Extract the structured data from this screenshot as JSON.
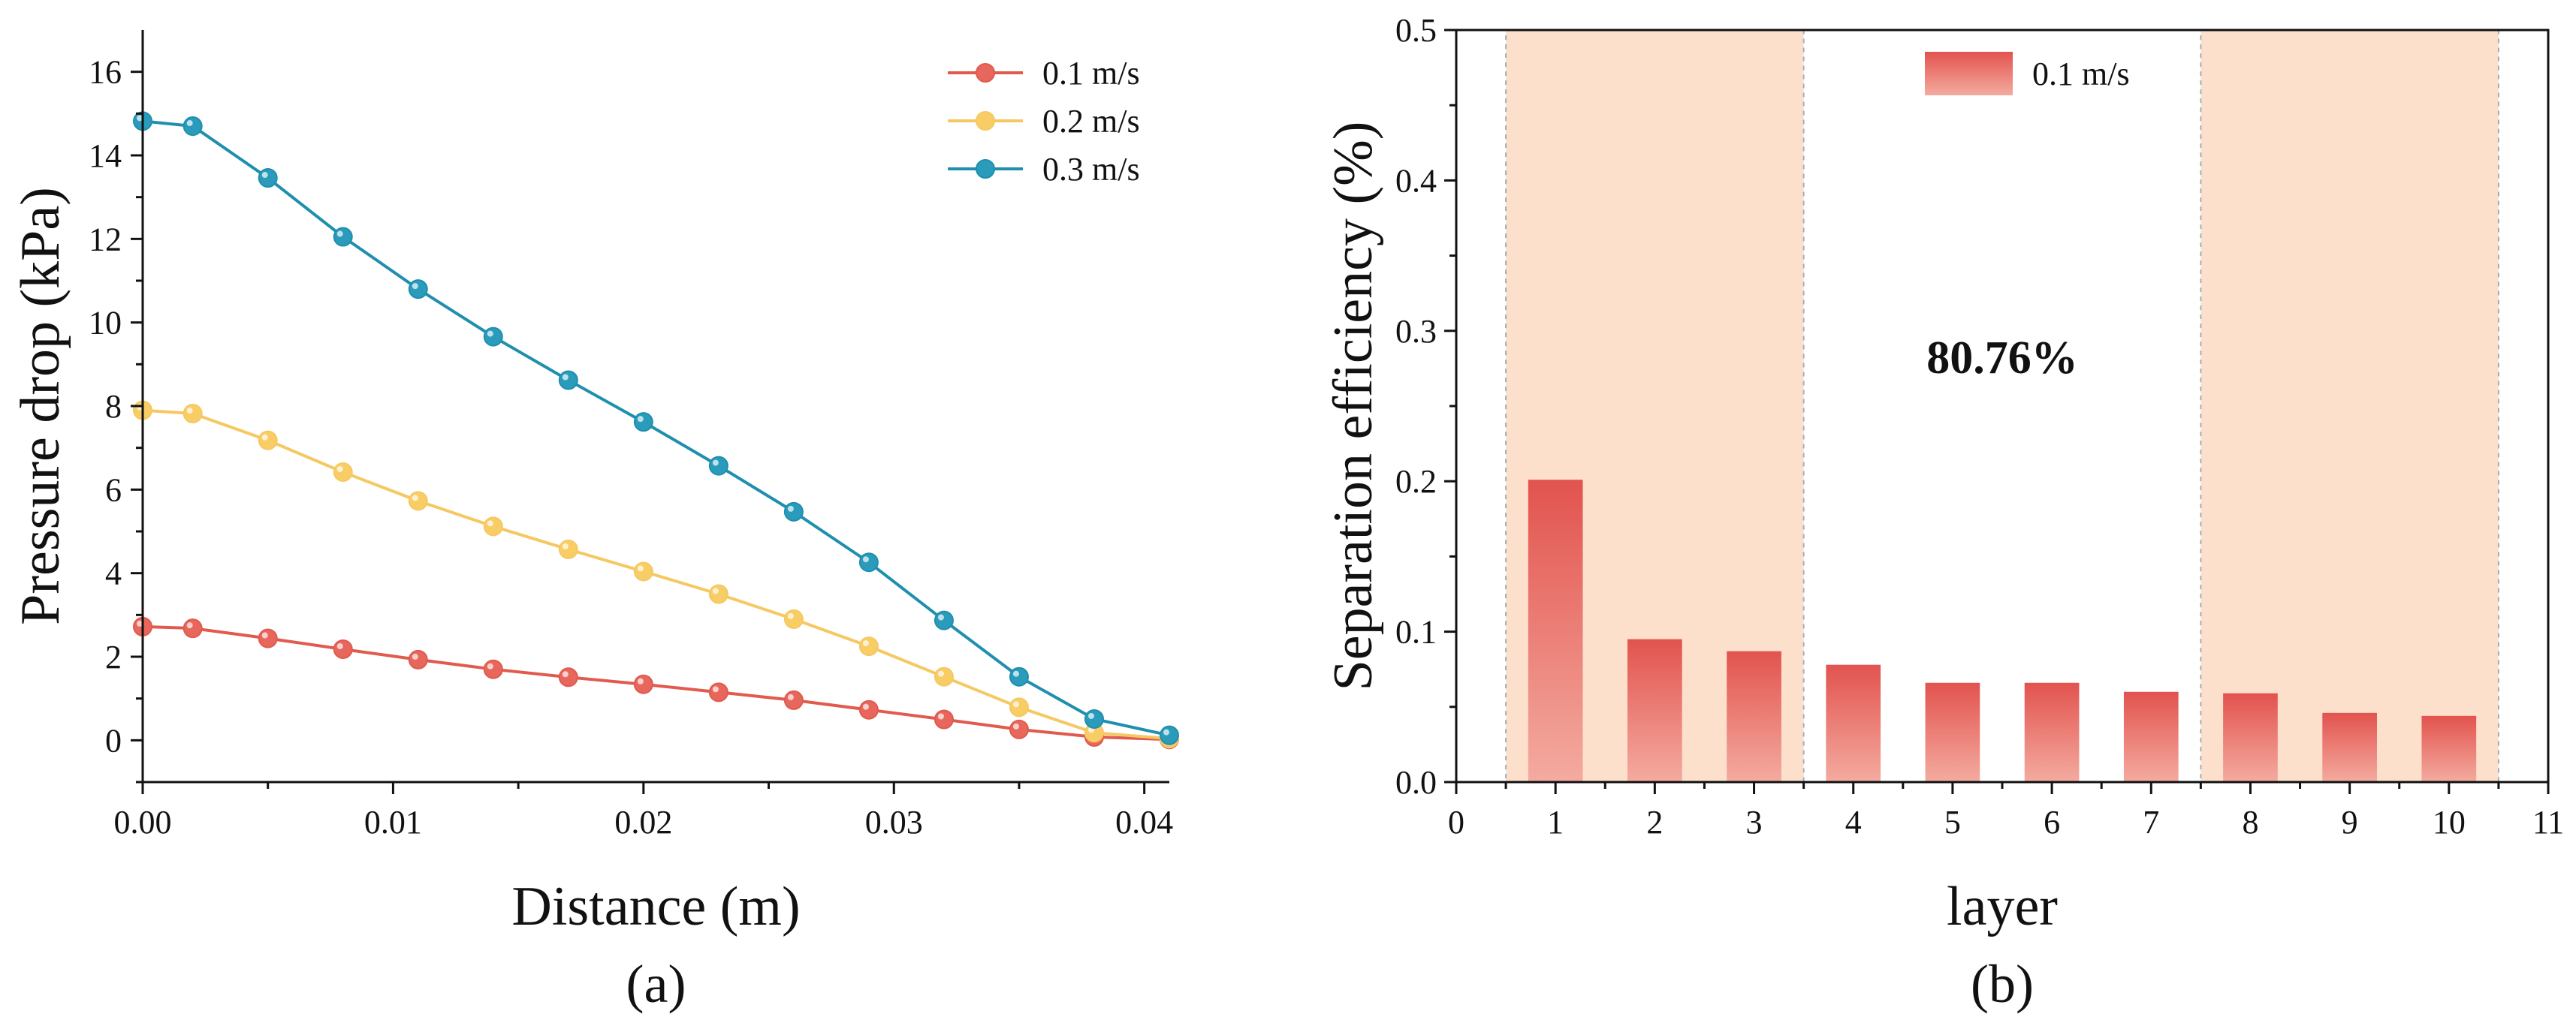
{
  "chart_data": [
    {
      "type": "line",
      "panel_label": "(a)",
      "xlabel": "Distance (m)",
      "ylabel": "Pressure drop (kPa)",
      "xlim": [
        0,
        0.041
      ],
      "ylim": [
        -1,
        17
      ],
      "xticks": [
        0.0,
        0.01,
        0.02,
        0.03,
        0.04
      ],
      "xtick_labels": [
        "0.00",
        "0.01",
        "0.02",
        "0.03",
        "0.04"
      ],
      "yticks": [
        0,
        2,
        4,
        6,
        8,
        10,
        12,
        14,
        16
      ],
      "ytick_labels": [
        "0",
        "2",
        "4",
        "6",
        "8",
        "10",
        "12",
        "14",
        "16"
      ],
      "grid": false,
      "legend_position": "top-right",
      "x": [
        0,
        0.002,
        0.005,
        0.008,
        0.011,
        0.014,
        0.017,
        0.02,
        0.023,
        0.026,
        0.029,
        0.032,
        0.035,
        0.038,
        0.041
      ],
      "series": [
        {
          "name": "0.1 m/s",
          "color": "#e05a4e",
          "marker_color": "#e8675c",
          "values": [
            2.72,
            2.68,
            2.44,
            2.18,
            1.93,
            1.7,
            1.51,
            1.34,
            1.15,
            0.96,
            0.73,
            0.5,
            0.26,
            0.08,
            0.02
          ]
        },
        {
          "name": "0.2 m/s",
          "color": "#f6c862",
          "marker_color": "#f8cd66",
          "values": [
            7.9,
            7.82,
            7.18,
            6.42,
            5.73,
            5.12,
            4.57,
            4.04,
            3.5,
            2.9,
            2.25,
            1.52,
            0.79,
            0.18,
            0.04
          ]
        },
        {
          "name": "0.3 m/s",
          "color": "#1f8fae",
          "marker_color": "#2a9bbb",
          "values": [
            14.82,
            14.7,
            13.46,
            12.05,
            10.8,
            9.66,
            8.62,
            7.62,
            6.57,
            5.47,
            4.26,
            2.87,
            1.52,
            0.51,
            0.12
          ]
        }
      ]
    },
    {
      "type": "bar",
      "panel_label": "(b)",
      "xlabel": "layer",
      "ylabel": "Separation efficiency (%)",
      "xlim": [
        0,
        11
      ],
      "ylim": [
        0,
        0.5
      ],
      "xticks": [
        0,
        1,
        2,
        3,
        4,
        5,
        6,
        7,
        8,
        9,
        10,
        11
      ],
      "xtick_labels": [
        "0",
        "1",
        "2",
        "3",
        "4",
        "5",
        "6",
        "7",
        "8",
        "9",
        "10",
        "11"
      ],
      "yticks": [
        0.0,
        0.1,
        0.2,
        0.3,
        0.4,
        0.5
      ],
      "ytick_labels": [
        "0.0",
        "0.1",
        "0.2",
        "0.3",
        "0.4",
        "0.5"
      ],
      "grid": false,
      "legend_position": "top-center",
      "categories": [
        1,
        2,
        3,
        4,
        5,
        6,
        7,
        8,
        9,
        10
      ],
      "series": [
        {
          "name": "0.1 m/s",
          "color_top": "#e2534e",
          "color_bottom": "#f4aba0",
          "values": [
            0.201,
            0.095,
            0.087,
            0.078,
            0.066,
            0.066,
            0.06,
            0.059,
            0.046,
            0.044
          ]
        }
      ],
      "shaded_regions": [
        {
          "from": 0.5,
          "to": 3.5,
          "color": "#fde0cc"
        },
        {
          "from": 7.5,
          "to": 10.5,
          "color": "#fde0cc"
        }
      ],
      "annotations": [
        {
          "text": "80.76%",
          "x": 5.5,
          "y": 0.272
        }
      ]
    }
  ]
}
